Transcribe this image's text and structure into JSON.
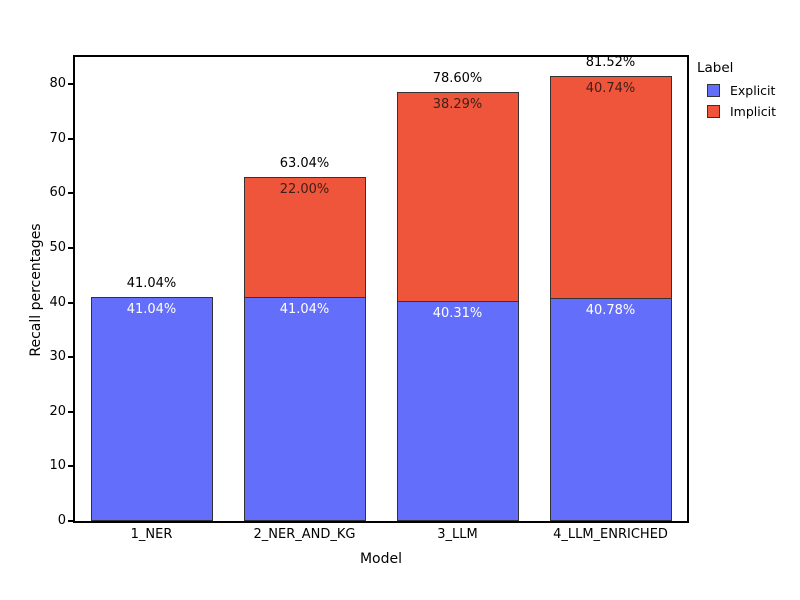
{
  "chart_data": {
    "type": "bar",
    "stacked": true,
    "title": "",
    "xlabel": "Model",
    "ylabel": "Recall percentages",
    "categories": [
      "1_NER",
      "2_NER_AND_KG",
      "3_LLM",
      "4_LLM_ENRICHED"
    ],
    "series": [
      {
        "name": "Explicit",
        "color": "#636EFA",
        "label_color": "#FFFFFF",
        "values": [
          41.04,
          41.04,
          40.31,
          40.78
        ]
      },
      {
        "name": "Implicit",
        "color": "#EF553B",
        "label_color": "#3E2019",
        "values": [
          0,
          22.0,
          38.29,
          40.74
        ]
      }
    ],
    "totals": [
      41.04,
      63.04,
      78.6,
      81.52
    ],
    "value_suffix": "%",
    "yticks": [
      0,
      10,
      20,
      30,
      40,
      50,
      60,
      70,
      80
    ],
    "ylim": [
      0,
      85
    ],
    "grid": false,
    "legend_title": "Label",
    "legend_position": "top-right-outside",
    "frame_color": "#000000",
    "bar_outline_color": "#333333"
  }
}
